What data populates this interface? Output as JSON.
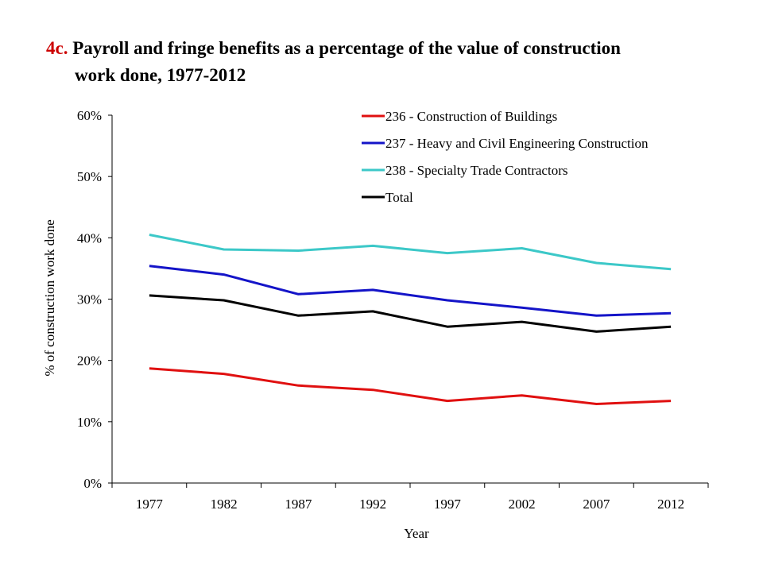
{
  "title": {
    "number": "4c.",
    "line1": "Payroll and fringe benefits as a percentage of the value of construction",
    "line2": "work done, 1977-2012"
  },
  "chart_data": {
    "type": "line",
    "title": "4c. Payroll and fringe benefits as a percentage of the value of construction work done, 1977-2012",
    "xlabel": "Year",
    "ylabel": "% of construction work done",
    "x": [
      "1977",
      "1982",
      "1987",
      "1992",
      "1997",
      "2002",
      "2007",
      "2012"
    ],
    "yticks": [
      "0%",
      "10%",
      "20%",
      "30%",
      "40%",
      "50%",
      "60%"
    ],
    "ylim": [
      0,
      60
    ],
    "grid": false,
    "legend_position": "top-right",
    "series": [
      {
        "name": "236 - Construction of Buildings",
        "color": "#e01010",
        "values": [
          18.7,
          17.8,
          15.9,
          15.2,
          13.4,
          14.3,
          12.9,
          13.4
        ]
      },
      {
        "name": "237 - Heavy and Civil Engineering Construction",
        "color": "#1414c8",
        "values": [
          35.4,
          34.0,
          30.8,
          31.5,
          29.8,
          28.6,
          27.3,
          27.7
        ]
      },
      {
        "name": "238 - Specialty Trade Contractors",
        "color": "#3cc8c8",
        "values": [
          40.5,
          38.1,
          37.9,
          38.7,
          37.5,
          38.3,
          35.9,
          34.9
        ]
      },
      {
        "name": "Total",
        "color": "#000000",
        "values": [
          30.6,
          29.8,
          27.3,
          28.0,
          25.5,
          26.3,
          24.7,
          25.5
        ]
      }
    ]
  }
}
